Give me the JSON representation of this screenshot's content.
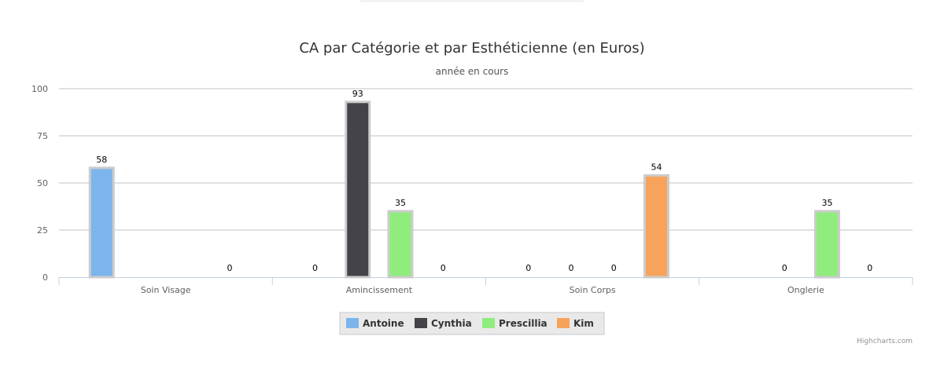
{
  "chart_data": {
    "type": "bar",
    "title": "CA par Catégorie et par Esthéticienne (en Euros)",
    "subtitle": "année en cours",
    "xlabel": "",
    "ylabel": "",
    "ylim": [
      0,
      100
    ],
    "yticks": [
      0,
      25,
      50,
      75,
      100
    ],
    "grid": true,
    "legend_position": "bottom-center",
    "categories": [
      "Soin Visage",
      "Amincissement",
      "Soin Corps",
      "Onglerie"
    ],
    "series": [
      {
        "name": "Antoine",
        "color": "#7cb5ec",
        "values": [
          58,
          0,
          0,
          0
        ]
      },
      {
        "name": "Cynthia",
        "color": "#434348",
        "values": [
          0,
          93,
          0,
          0
        ]
      },
      {
        "name": "Prescillia",
        "color": "#90ed7d",
        "values": [
          0,
          35,
          0,
          35
        ]
      },
      {
        "name": "Kim",
        "color": "#f7a35c",
        "values": [
          0,
          0,
          54,
          0
        ]
      }
    ],
    "null_points": [
      [
        1,
        0
      ],
      [
        2,
        0
      ],
      [
        0,
        3
      ]
    ]
  },
  "credits": "Highcharts.com"
}
